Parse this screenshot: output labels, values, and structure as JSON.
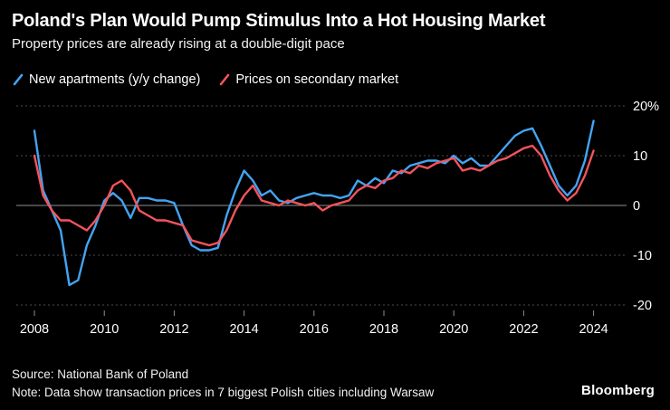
{
  "header": {
    "title": "Poland's Plan Would Pump Stimulus Into a Hot Housing Market",
    "subtitle": "Property prices are already rising at a double-digit pace"
  },
  "legend": {
    "items": [
      {
        "label": "New apartments (y/y change)",
        "color": "#44A4F2"
      },
      {
        "label": "Prices on secondary market",
        "color": "#F5535C"
      }
    ]
  },
  "chart_data": {
    "type": "line",
    "title": "Poland's Plan Would Pump Stimulus Into a Hot Housing Market",
    "subtitle": "Property prices are already rising at a double-digit pace",
    "xlabel": "",
    "ylabel": "",
    "ylim": [
      -25,
      22
    ],
    "xlim": [
      2007.8,
      2024.6
    ],
    "grid": "horizontal-dotted",
    "legend_position": "top",
    "yticks": [
      {
        "value": 20,
        "label": "20%"
      },
      {
        "value": 10,
        "label": "10"
      },
      {
        "value": 0,
        "label": "0"
      },
      {
        "value": -10,
        "label": "-10"
      },
      {
        "value": -20,
        "label": "-20"
      }
    ],
    "xticks": [
      2008,
      2010,
      2012,
      2014,
      2016,
      2018,
      2020,
      2022,
      2024
    ],
    "x": [
      2008,
      2008.25,
      2008.5,
      2008.75,
      2009,
      2009.25,
      2009.5,
      2009.75,
      2010,
      2010.25,
      2010.5,
      2010.75,
      2011,
      2011.25,
      2011.5,
      2011.75,
      2012,
      2012.25,
      2012.5,
      2012.75,
      2013,
      2013.25,
      2013.5,
      2013.75,
      2014,
      2014.25,
      2014.5,
      2014.75,
      2015,
      2015.25,
      2015.5,
      2015.75,
      2016,
      2016.25,
      2016.5,
      2016.75,
      2017,
      2017.25,
      2017.5,
      2017.75,
      2018,
      2018.25,
      2018.5,
      2018.75,
      2019,
      2019.25,
      2019.5,
      2019.75,
      2020,
      2020.25,
      2020.5,
      2020.75,
      2021,
      2021.25,
      2021.5,
      2021.75,
      2022,
      2022.25,
      2022.5,
      2022.75,
      2023,
      2023.25,
      2023.5,
      2023.75,
      2024
    ],
    "series": [
      {
        "name": "New apartments (y/y change)",
        "color": "#44A4F2",
        "values": [
          15,
          3,
          -1,
          -5,
          -16,
          -15,
          -8,
          -4,
          1,
          2.5,
          1,
          -2.5,
          1.5,
          1.5,
          1,
          1,
          0.5,
          -4,
          -8,
          -9,
          -9,
          -8.5,
          -2,
          3,
          7,
          5,
          2,
          3,
          1,
          0.5,
          1.5,
          2,
          2.5,
          2,
          2,
          1.5,
          2,
          5,
          4,
          5.5,
          4.5,
          7,
          6.5,
          8,
          8.5,
          9,
          9,
          8.5,
          10,
          8.5,
          9.5,
          8,
          8,
          10,
          12,
          14,
          15,
          15.5,
          12,
          8,
          4,
          2,
          4,
          9,
          17
        ]
      },
      {
        "name": "Prices on secondary market",
        "color": "#F5535C",
        "values": [
          10,
          2,
          -1,
          -3,
          -3,
          -4,
          -5,
          -3,
          0,
          4,
          5,
          3,
          -1,
          -2,
          -3,
          -3,
          -3.5,
          -4,
          -7,
          -7.5,
          -8,
          -7.5,
          -5,
          -1,
          2,
          4,
          1,
          0.5,
          0,
          1,
          0.5,
          0,
          0.5,
          -1,
          0,
          0.5,
          1,
          3,
          4,
          3.5,
          5,
          5.5,
          7,
          6.5,
          8,
          7.5,
          8.5,
          9,
          9.5,
          7,
          7.5,
          7,
          8,
          9,
          9.5,
          10.5,
          11.5,
          12,
          10,
          6,
          3,
          1,
          2.5,
          6,
          11
        ]
      }
    ]
  },
  "footer": {
    "source": "Source: National Bank of Poland",
    "note": "Note: Data show transaction prices in 7 biggest Polish cities including Warsaw",
    "logo": "Bloomberg"
  },
  "colors": {
    "background": "#000000",
    "text": "#ffffff",
    "gridline": "#4d4d4d",
    "zero_line": "#8f8f8f",
    "blue_series": "#44A4F2",
    "red_series": "#F5535C"
  }
}
